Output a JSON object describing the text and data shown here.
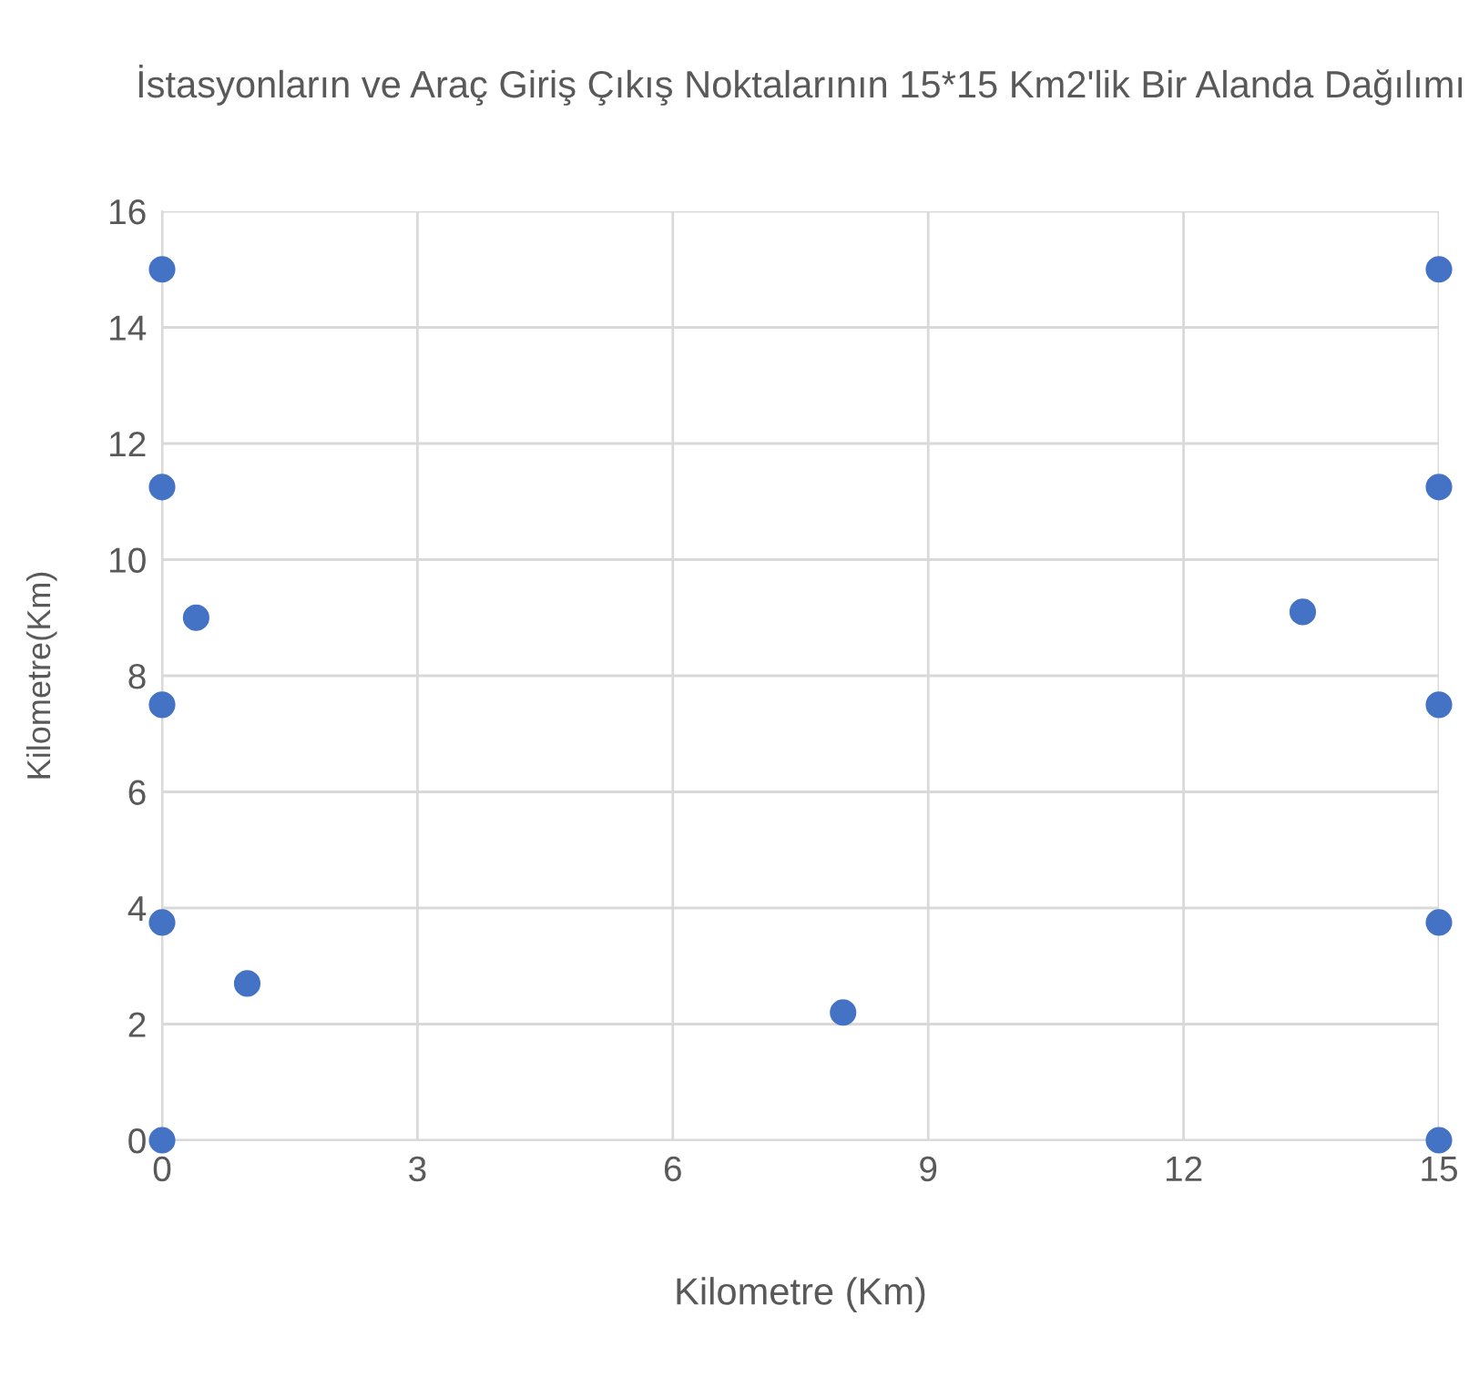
{
  "chart_data": {
    "type": "scatter",
    "title": "İstasyonların ve Araç Giriş Çıkış Noktalarının 15*15 Km2'lik Bir Alanda Dağılımı",
    "xlabel": "Kilometre (Km)",
    "ylabel": "Kilometre(Km)",
    "series": [
      {
        "color": "#4472c4",
        "x": [
          0,
          0,
          0,
          0,
          0,
          0.4,
          1,
          8,
          13.4,
          15,
          15,
          15,
          15,
          15
        ],
        "values": [
          15,
          11.25,
          7.5,
          3.75,
          0,
          9,
          2.7,
          2.2,
          9.1,
          15,
          11.25,
          7.5,
          3.75,
          0
        ]
      }
    ],
    "xlim": [
      0,
      15
    ],
    "xticks": [
      0,
      3,
      6,
      9,
      12,
      15
    ],
    "ylim": [
      0,
      16
    ],
    "yticks": [
      0,
      2,
      4,
      6,
      8,
      10,
      12,
      14,
      16
    ],
    "grid": true,
    "marker": "circle"
  }
}
